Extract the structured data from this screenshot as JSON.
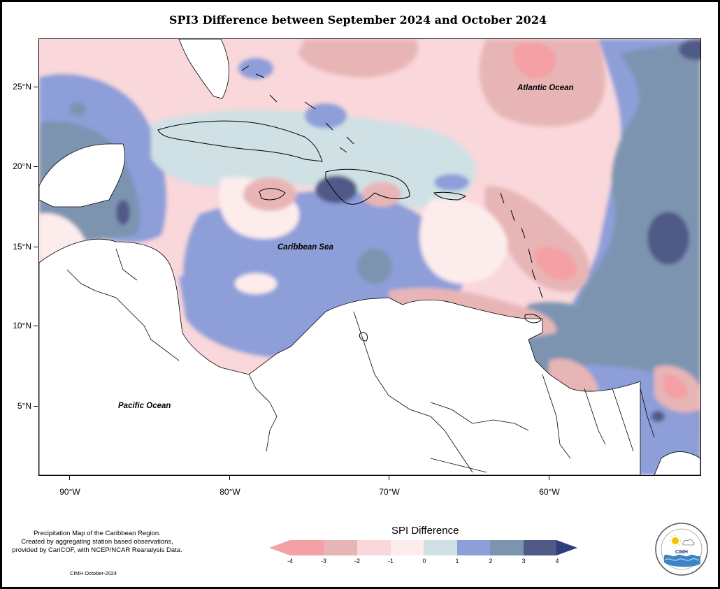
{
  "title": "SPI3 Difference between September 2024 and October 2024",
  "map": {
    "y_axis_labels": [
      "25°N",
      "20°N",
      "15°N",
      "10°N",
      "5°N"
    ],
    "x_axis_labels": [
      "90°W",
      "80°W",
      "70°W",
      "60°W"
    ],
    "ocean_labels": {
      "atlantic": "Atlantic Ocean",
      "caribbean": "Caribbean Sea",
      "pacific": "Pacific Ocean"
    }
  },
  "legend": {
    "title": "SPI Difference",
    "labels": [
      "-4",
      "-3",
      "-2",
      "-1",
      "0",
      "1",
      "2",
      "3",
      "4"
    ],
    "colors": [
      "#f4a0a5",
      "#e8b5b6",
      "#f9d7da",
      "#fdecec",
      "#cfe1e5",
      "#8e9ed9",
      "#7d94b1",
      "#4f5a86"
    ]
  },
  "footer": {
    "note_lines": [
      "Precipitation Map of the Caribbean Region.",
      "Created by aggregating station based observations,",
      "provided by CariCOF, with NCEP/NCAR Reanalysis Data."
    ],
    "credit": "CIMH October-2024"
  },
  "logo": {
    "icon": "cimh-logo-icon",
    "text": "CIMH"
  }
}
